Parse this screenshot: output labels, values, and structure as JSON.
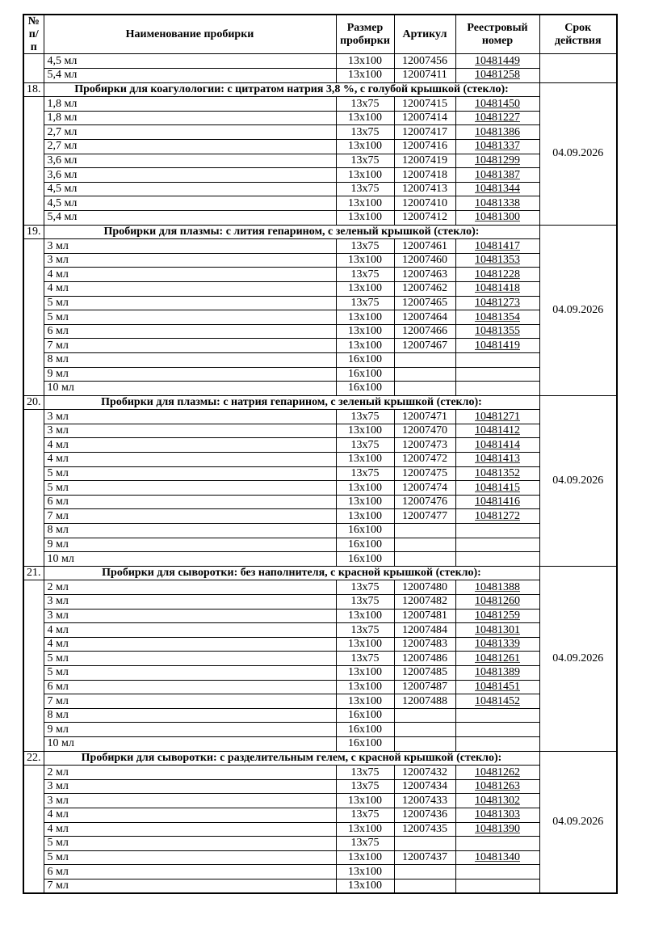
{
  "colors": {
    "page_background": "#ffffff",
    "text": "#000000",
    "border": "#000000"
  },
  "table": {
    "columns": [
      {
        "label": "№ п/п"
      },
      {
        "label": "Наименование пробирки"
      },
      {
        "label": "Размер пробирки"
      },
      {
        "label": "Артикул"
      },
      {
        "label": "Реестровый номер"
      },
      {
        "label": "Срок действия"
      }
    ],
    "sections": [
      {
        "number": "",
        "title": null,
        "date": "",
        "rows": [
          [
            "4,5 мл",
            "13x100",
            "12007456",
            "10481449"
          ],
          [
            "5,4 мл",
            "13x100",
            "12007411",
            "10481258"
          ]
        ]
      },
      {
        "number": "18.",
        "title": "Пробирки для коагулологии: с цитратом натрия 3,8 %, с голубой крышкой (стекло):",
        "date": "04.09.2026",
        "rows": [
          [
            "1,8 мл",
            "13x75",
            "12007415",
            "10481450"
          ],
          [
            "1,8 мл",
            "13x100",
            "12007414",
            "10481227"
          ],
          [
            "2,7 мл",
            "13x75",
            "12007417",
            "10481386"
          ],
          [
            "2,7 мл",
            "13x100",
            "12007416",
            "10481337"
          ],
          [
            "3,6 мл",
            "13x75",
            "12007419",
            "10481299"
          ],
          [
            "3,6 мл",
            "13x100",
            "12007418",
            "10481387"
          ],
          [
            "4,5 мл",
            "13x75",
            "12007413",
            "10481344"
          ],
          [
            "4,5 мл",
            "13x100",
            "12007410",
            "10481338"
          ],
          [
            "5,4 мл",
            "13x100",
            "12007412",
            "10481300"
          ]
        ]
      },
      {
        "number": "19.",
        "title": "Пробирки для плазмы: с лития гепарином, с зеленый крышкой (стекло):",
        "date": "04.09.2026",
        "rows": [
          [
            "3 мл",
            "13x75",
            "12007461",
            "10481417"
          ],
          [
            "3 мл",
            "13x100",
            "12007460",
            "10481353"
          ],
          [
            "4 мл",
            "13x75",
            "12007463",
            "10481228"
          ],
          [
            "4 мл",
            "13x100",
            "12007462",
            "10481418"
          ],
          [
            "5 мл",
            "13x75",
            "12007465",
            "10481273"
          ],
          [
            "5 мл",
            "13x100",
            "12007464",
            "10481354"
          ],
          [
            "6 мл",
            "13x100",
            "12007466",
            "10481355"
          ],
          [
            "7 мл",
            "13x100",
            "12007467",
            "10481419"
          ],
          [
            "8 мл",
            "16x100",
            "",
            ""
          ],
          [
            "9 мл",
            "16x100",
            "",
            ""
          ],
          [
            "10 мл",
            "16x100",
            "",
            ""
          ]
        ]
      },
      {
        "number": "20.",
        "title": "Пробирки для плазмы: с натрия гепарином, с зеленый крышкой (стекло):",
        "date": "04.09.2026",
        "rows": [
          [
            "3 мл",
            "13x75",
            "12007471",
            "10481271"
          ],
          [
            "3 мл",
            "13x100",
            "12007470",
            "10481412"
          ],
          [
            "4 мл",
            "13x75",
            "12007473",
            "10481414"
          ],
          [
            "4 мл",
            "13x100",
            "12007472",
            "10481413"
          ],
          [
            "5 мл",
            "13x75",
            "12007475",
            "10481352"
          ],
          [
            "5 мл",
            "13x100",
            "12007474",
            "10481415"
          ],
          [
            "6 мл",
            "13x100",
            "12007476",
            "10481416"
          ],
          [
            "7 мл",
            "13x100",
            "12007477",
            "10481272"
          ],
          [
            "8 мл",
            "16x100",
            "",
            ""
          ],
          [
            "9 мл",
            "16x100",
            "",
            ""
          ],
          [
            "10 мл",
            "16x100",
            "",
            ""
          ]
        ]
      },
      {
        "number": "21.",
        "title": "Пробирки для сыворотки: без наполнителя, с красной крышкой (стекло):",
        "date": "04.09.2026",
        "rows": [
          [
            "2 мл",
            "13x75",
            "12007480",
            "10481388"
          ],
          [
            "3 мл",
            "13x75",
            "12007482",
            "10481260"
          ],
          [
            "3 мл",
            "13x100",
            "12007481",
            "10481259"
          ],
          [
            "4 мл",
            "13x75",
            "12007484",
            "10481301"
          ],
          [
            "4 мл",
            "13x100",
            "12007483",
            "10481339"
          ],
          [
            "5 мл",
            "13x75",
            "12007486",
            "10481261"
          ],
          [
            "5 мл",
            "13x100",
            "12007485",
            "10481389"
          ],
          [
            "6 мл",
            "13x100",
            "12007487",
            "10481451"
          ],
          [
            "7 мл",
            "13x100",
            "12007488",
            "10481452"
          ],
          [
            "8 мл",
            "16x100",
            "",
            ""
          ],
          [
            "9 мл",
            "16x100",
            "",
            ""
          ],
          [
            "10 мл",
            "16x100",
            "",
            ""
          ]
        ]
      },
      {
        "number": "22.",
        "title": "Пробирки для сыворотки: с разделительным гелем, с красной крышкой (стекло):",
        "date": "04.09.2026",
        "rows": [
          [
            "2 мл",
            "13x75",
            "12007432",
            "10481262"
          ],
          [
            "3 мл",
            "13x75",
            "12007434",
            "10481263"
          ],
          [
            "3 мл",
            "13x100",
            "12007433",
            "10481302"
          ],
          [
            "4 мл",
            "13x75",
            "12007436",
            "10481303"
          ],
          [
            "4 мл",
            "13x100",
            "12007435",
            "10481390"
          ],
          [
            "5 мл",
            "13x75",
            "",
            ""
          ],
          [
            "5 мл",
            "13x100",
            "12007437",
            "10481340"
          ],
          [
            "6 мл",
            "13x100",
            "",
            ""
          ],
          [
            "7 мл",
            "13x100",
            "",
            ""
          ]
        ]
      }
    ]
  }
}
